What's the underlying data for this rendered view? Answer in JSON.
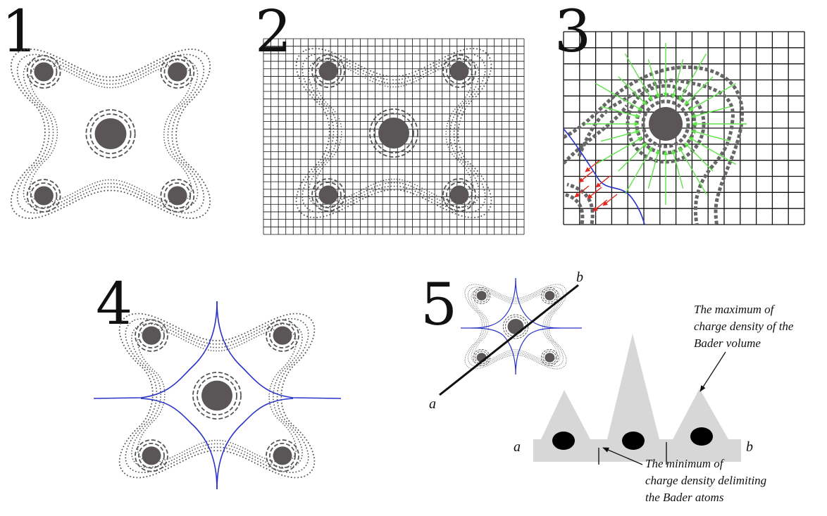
{
  "panels": [
    {
      "id": "p1",
      "number": "1"
    },
    {
      "id": "p2",
      "number": "2"
    },
    {
      "id": "p3",
      "number": "3"
    },
    {
      "id": "p4",
      "number": "4"
    },
    {
      "id": "p5",
      "number": "5"
    }
  ],
  "profile": {
    "start_label": "a",
    "end_label": "b",
    "line_start_label": "a",
    "line_end_label": "b"
  },
  "annotations": {
    "maximum": [
      "The maximum of",
      "charge density of the",
      "Bader volume"
    ],
    "minimum": [
      "The minimum of",
      "charge density delimiting",
      "the Bader atoms"
    ]
  },
  "colors": {
    "atom": "#5a5556",
    "contour": "#555555",
    "grid": "#111111",
    "boundary": "#2a33c8",
    "gradient_green": "#5fe24a",
    "gradient_red": "#e0281e",
    "density_fill": "#d7d7d7"
  }
}
